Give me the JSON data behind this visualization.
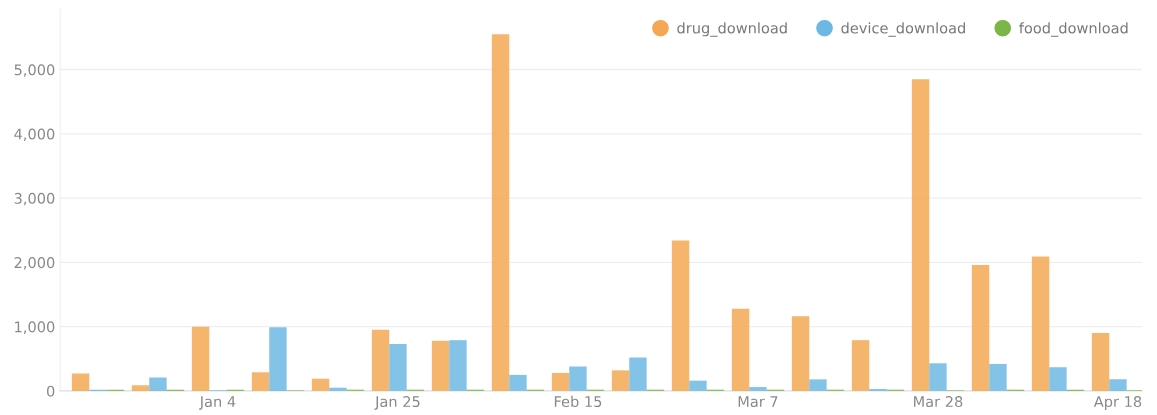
{
  "chart_data": {
    "type": "bar",
    "categories": [
      null,
      null,
      "Jan 4",
      null,
      null,
      "Jan 25",
      null,
      null,
      "Feb 15",
      null,
      null,
      "Mar 7",
      null,
      null,
      "Mar 28",
      null,
      null,
      "Apr 18"
    ],
    "series": [
      {
        "name": "drug_download",
        "color": "#f5a853",
        "values": [
          270,
          90,
          1000,
          290,
          190,
          950,
          780,
          5550,
          280,
          320,
          2340,
          1280,
          1160,
          790,
          4850,
          1960,
          2090,
          900
        ]
      },
      {
        "name": "device_download",
        "color": "#6cb8e3",
        "values": [
          20,
          210,
          10,
          990,
          50,
          730,
          790,
          250,
          380,
          520,
          160,
          60,
          180,
          30,
          430,
          420,
          370,
          180
        ]
      },
      {
        "name": "food_download",
        "color": "#7ab648",
        "values": [
          20,
          20,
          20,
          10,
          20,
          20,
          20,
          20,
          20,
          20,
          20,
          20,
          20,
          20,
          10,
          20,
          20,
          10
        ]
      }
    ],
    "ylim": [
      0,
      5940
    ],
    "yticks": [
      {
        "value": 0,
        "label": "0"
      },
      {
        "value": 1000,
        "label": "1,000"
      },
      {
        "value": 2000,
        "label": "2,000"
      },
      {
        "value": 3000,
        "label": "3,000"
      },
      {
        "value": 4000,
        "label": "4,000"
      },
      {
        "value": 5000,
        "label": "5,000"
      }
    ],
    "grid": "y",
    "legend": "top right"
  }
}
